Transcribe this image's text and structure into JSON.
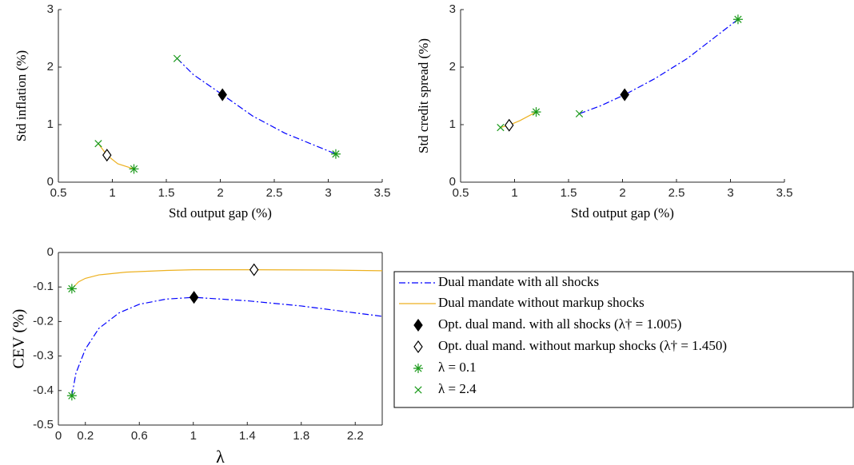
{
  "chart_data": [
    {
      "type": "line",
      "xlabel": "Std output gap (%)",
      "ylabel": "Std inflation (%)",
      "xlim": [
        0.5,
        3.5
      ],
      "ylim": [
        0,
        3
      ],
      "xticks": [
        0.5,
        1,
        1.5,
        2,
        2.5,
        3,
        3.5
      ],
      "yticks": [
        0,
        1,
        2,
        3
      ],
      "box": false,
      "series": [
        {
          "color": "#0000ff",
          "style": "dashdot",
          "x": [
            1.6,
            1.75,
            2.02,
            2.3,
            2.6,
            3.07
          ],
          "y": [
            2.15,
            1.87,
            1.52,
            1.15,
            0.85,
            0.49
          ]
        },
        {
          "color": "#edb120",
          "style": "solid",
          "x": [
            0.87,
            0.95,
            1.05,
            1.2
          ],
          "y": [
            0.67,
            0.47,
            0.32,
            0.23
          ]
        },
        {
          "color": "#000000",
          "marker": "filled-diamond",
          "x": [
            2.02
          ],
          "y": [
            1.52
          ]
        },
        {
          "color": "#000000",
          "marker": "open-diamond",
          "x": [
            0.95
          ],
          "y": [
            0.47
          ]
        },
        {
          "color": "#1a9a1a",
          "marker": "asterisk",
          "x": [
            3.07,
            1.2
          ],
          "y": [
            0.49,
            0.23
          ]
        },
        {
          "color": "#1a9a1a",
          "marker": "cross",
          "x": [
            1.6,
            0.87
          ],
          "y": [
            2.15,
            0.67
          ]
        }
      ]
    },
    {
      "type": "line",
      "xlabel": "Std output gap (%)",
      "ylabel": "Std credit spread (%)",
      "xlim": [
        0.5,
        3.5
      ],
      "ylim": [
        0,
        3
      ],
      "xticks": [
        0.5,
        1,
        1.5,
        2,
        2.5,
        3,
        3.5
      ],
      "yticks": [
        0,
        1,
        2,
        3
      ],
      "box": false,
      "series": [
        {
          "color": "#0000ff",
          "style": "dashdot",
          "x": [
            1.6,
            1.8,
            2.02,
            2.3,
            2.6,
            3.07
          ],
          "y": [
            1.19,
            1.33,
            1.52,
            1.8,
            2.15,
            2.83
          ]
        },
        {
          "color": "#edb120",
          "style": "solid",
          "x": [
            0.87,
            0.95,
            1.05,
            1.2
          ],
          "y": [
            0.95,
            0.99,
            1.07,
            1.22
          ]
        },
        {
          "color": "#000000",
          "marker": "filled-diamond",
          "x": [
            2.02
          ],
          "y": [
            1.52
          ]
        },
        {
          "color": "#000000",
          "marker": "open-diamond",
          "x": [
            0.95
          ],
          "y": [
            0.99
          ]
        },
        {
          "color": "#1a9a1a",
          "marker": "asterisk",
          "x": [
            3.07,
            1.2
          ],
          "y": [
            2.83,
            1.22
          ]
        },
        {
          "color": "#1a9a1a",
          "marker": "cross",
          "x": [
            1.6,
            0.87
          ],
          "y": [
            1.19,
            0.95
          ]
        }
      ]
    },
    {
      "type": "line",
      "xlabel": "λ",
      "ylabel": "CEV (%)",
      "xlim": [
        0,
        2.4
      ],
      "ylim": [
        -0.5,
        0
      ],
      "xticks": [
        0,
        0.2,
        0.6,
        1,
        1.4,
        1.8,
        2.2
      ],
      "yticks": [
        -0.5,
        -0.4,
        -0.3,
        -0.2,
        -0.1,
        0
      ],
      "box": true,
      "series": [
        {
          "name": "Dual mandate with all shocks",
          "color": "#0000ff",
          "style": "dashdot",
          "x": [
            0.1,
            0.13,
            0.2,
            0.3,
            0.45,
            0.6,
            0.8,
            1.005,
            1.4,
            1.8,
            2.2,
            2.4
          ],
          "y": [
            -0.415,
            -0.35,
            -0.28,
            -0.22,
            -0.175,
            -0.15,
            -0.135,
            -0.13,
            -0.14,
            -0.155,
            -0.175,
            -0.185
          ]
        },
        {
          "name": "Dual mandate without markup shocks",
          "color": "#edb120",
          "style": "solid",
          "x": [
            0.1,
            0.15,
            0.2,
            0.3,
            0.5,
            0.8,
            1.0,
            1.45,
            2.0,
            2.4
          ],
          "y": [
            -0.105,
            -0.085,
            -0.075,
            -0.065,
            -0.057,
            -0.052,
            -0.05,
            -0.05,
            -0.051,
            -0.053
          ]
        },
        {
          "name": "Opt. dual mand. with all shocks (λ† = 1.005)",
          "color": "#000000",
          "marker": "filled-diamond",
          "x": [
            1.005
          ],
          "y": [
            -0.13
          ]
        },
        {
          "name": "Opt. dual mand. without markup shocks (λ† = 1.450)",
          "color": "#000000",
          "marker": "open-diamond",
          "x": [
            1.45
          ],
          "y": [
            -0.05
          ]
        },
        {
          "name": "λ = 0.1",
          "color": "#1a9a1a",
          "marker": "asterisk",
          "x": [
            0.1,
            0.1
          ],
          "y": [
            -0.415,
            -0.105
          ]
        },
        {
          "name": "λ = 2.4",
          "color": "#1a9a1a",
          "marker": "cross",
          "x": [],
          "y": []
        }
      ]
    }
  ]
}
